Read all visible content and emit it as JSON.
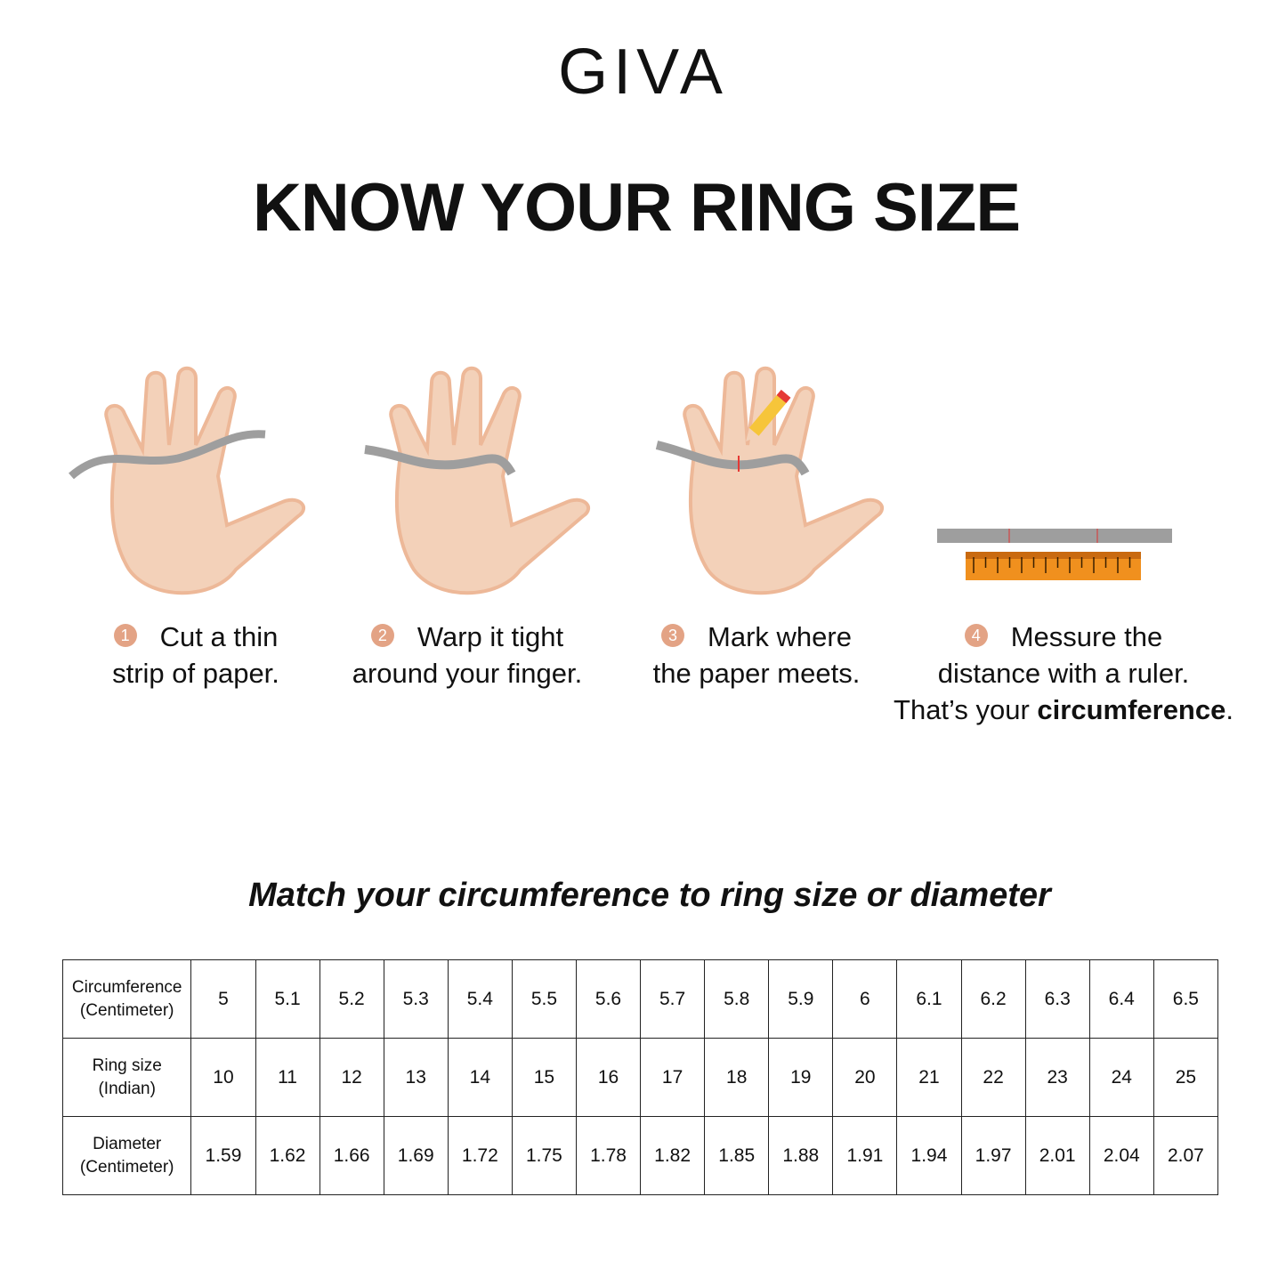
{
  "brand": "GIVA",
  "title": "KNOW YOUR RING SIZE",
  "colors": {
    "step_badge": "#E3A385",
    "skin": "#F3D1B9",
    "paper_strip": "#9E9E9E",
    "ruler": "#F0901E"
  },
  "steps": [
    {
      "number": "1",
      "line1": "Cut a thin",
      "line2": "strip of paper."
    },
    {
      "number": "2",
      "line1": "Warp it tight",
      "line2": "around your finger."
    },
    {
      "number": "3",
      "line1": "Mark where",
      "line2": "the paper meets."
    },
    {
      "number": "4",
      "line1": "Messure the",
      "line2": "distance with a ruler.",
      "line3_prefix": "That’s your ",
      "line3_bold": "circumference",
      "line3_suffix": "."
    }
  ],
  "subtitle": "Match your circumference to ring size or diameter",
  "table": {
    "rows": [
      {
        "label1": "Circumference",
        "label2": "(Centimeter)",
        "values": [
          "5",
          "5.1",
          "5.2",
          "5.3",
          "5.4",
          "5.5",
          "5.6",
          "5.7",
          "5.8",
          "5.9",
          "6",
          "6.1",
          "6.2",
          "6.3",
          "6.4",
          "6.5"
        ]
      },
      {
        "label1": "Ring size",
        "label2": "(Indian)",
        "values": [
          "10",
          "11",
          "12",
          "13",
          "14",
          "15",
          "16",
          "17",
          "18",
          "19",
          "20",
          "21",
          "22",
          "23",
          "24",
          "25"
        ]
      },
      {
        "label1": "Diameter",
        "label2": "(Centimeter)",
        "values": [
          "1.59",
          "1.62",
          "1.66",
          "1.69",
          "1.72",
          "1.75",
          "1.78",
          "1.82",
          "1.85",
          "1.88",
          "1.91",
          "1.94",
          "1.97",
          "2.01",
          "2.04",
          "2.07"
        ]
      }
    ]
  }
}
